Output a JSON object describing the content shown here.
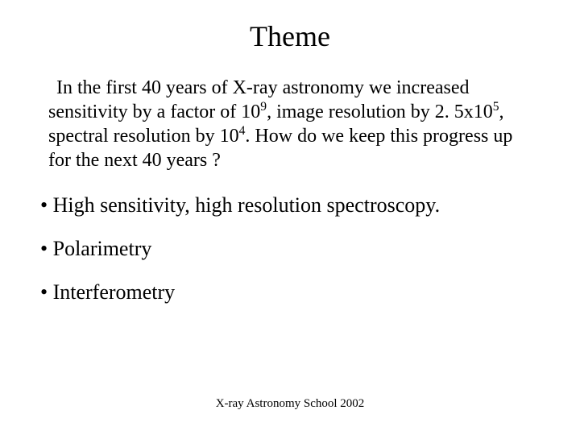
{
  "title": "Theme",
  "paragraph": {
    "seg1": "In the first 40 years of X-ray astronomy we increased sensitivity by a factor of 10",
    "sup1": "9",
    "seg2": ", image resolution by 2. 5x10",
    "sup2": "5",
    "seg3": ", spectral resolution by 10",
    "sup3": "4",
    "seg4": ". How do we keep this progress up for the next 40 years ?"
  },
  "bullets": [
    "• High sensitivity, high resolution spectroscopy.",
    "• Polarimetry",
    "• Interferometry"
  ],
  "footer": "X-ray Astronomy School 2002",
  "colors": {
    "background": "#ffffff",
    "text": "#000000"
  },
  "typography": {
    "title_fontsize": 36,
    "body_fontsize": 24,
    "bullet_fontsize": 26,
    "footer_fontsize": 15,
    "font_family": "Times New Roman"
  }
}
